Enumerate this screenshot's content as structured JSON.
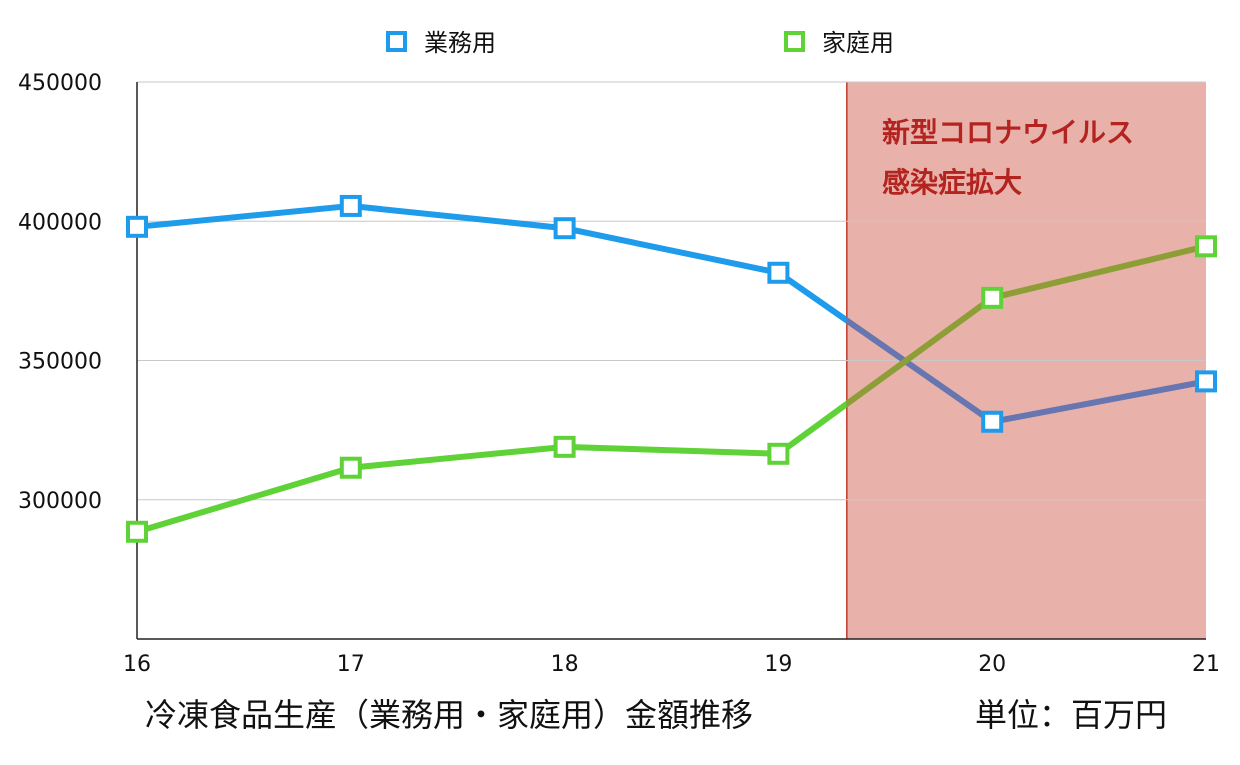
{
  "chart_data": {
    "type": "line",
    "categories": [
      "16",
      "17",
      "18",
      "19",
      "20",
      "21"
    ],
    "x": [
      16,
      17,
      18,
      19,
      20,
      21
    ],
    "series": [
      {
        "name": "業務用",
        "color": "#1E9BEB",
        "values": [
          398000,
          405500,
          397500,
          381500,
          328000,
          342500
        ]
      },
      {
        "name": "家庭用",
        "color": "#5ED237",
        "values": [
          288500,
          311500,
          319000,
          316500,
          372500,
          391000
        ]
      }
    ],
    "overlap_colors": {
      "業務用": "#6775B0",
      "家庭用": "#8E9E37"
    },
    "ylim": [
      250000,
      450000
    ],
    "yticks": [
      300000,
      350000,
      400000,
      450000
    ],
    "xlim": [
      16,
      21
    ],
    "grid": true,
    "legend_position": "top",
    "highlight": {
      "x_start": 19.32,
      "x_end": 21,
      "fill": "#E8B2AB",
      "border": "#C0392B",
      "label_lines": [
        "新型コロナウイルス",
        "感染症拡大"
      ],
      "label_color": "#B3231F"
    },
    "caption": "冷凍食品生産（業務用・家庭用）金額推移",
    "unit": "単位：百万円"
  }
}
